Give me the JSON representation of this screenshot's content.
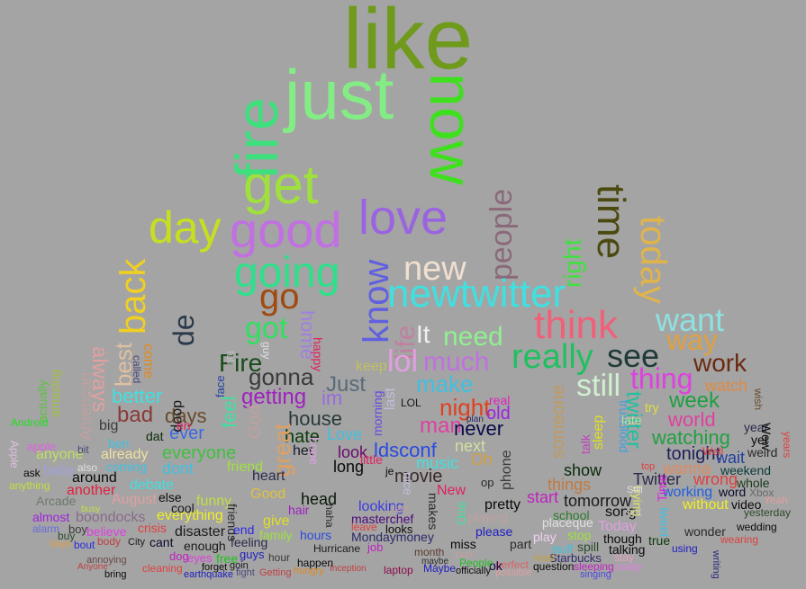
{
  "background": "#a4a4a4",
  "words": [
    {
      "text": "like",
      "color": "#6f9a1c"
    },
    {
      "text": "just",
      "color": "#84ec84"
    },
    {
      "text": "fire",
      "color": "#3ee07e"
    },
    {
      "text": "now",
      "color": "#3ee01e"
    },
    {
      "text": "get",
      "color": "#a0e03c"
    },
    {
      "text": "time",
      "color": "#4a4a10"
    },
    {
      "text": "today",
      "color": "#e0b44a"
    },
    {
      "text": "people",
      "color": "#8a6a7a"
    },
    {
      "text": "day",
      "color": "#c6e020"
    },
    {
      "text": "good",
      "color": "#c070e0"
    },
    {
      "text": "love",
      "color": "#9a64e0"
    },
    {
      "text": "know",
      "color": "#6060e0"
    },
    {
      "text": "right",
      "color": "#40e040"
    },
    {
      "text": "going",
      "color": "#2ee08a"
    },
    {
      "text": "new",
      "color": "#f0e0d0"
    },
    {
      "text": "newtwitter",
      "color": "#40e0e0"
    },
    {
      "text": "back",
      "color": "#f0d020"
    },
    {
      "text": "go",
      "color": "#a04a10"
    },
    {
      "text": "think",
      "color": "#f0607a"
    },
    {
      "text": "want",
      "color": "#90e0e0"
    },
    {
      "text": "way",
      "color": "#e0a040"
    },
    {
      "text": "work",
      "color": "#6a2a10"
    },
    {
      "text": "de",
      "color": "#2a3a4a"
    },
    {
      "text": "got",
      "color": "#30e060"
    },
    {
      "text": "home",
      "color": "#a080e0"
    },
    {
      "text": "life",
      "color": "#c080a0"
    },
    {
      "text": "It",
      "color": "#f0f0f0"
    },
    {
      "text": "need",
      "color": "#90f090"
    },
    {
      "text": "really",
      "color": "#20c060"
    },
    {
      "text": "see",
      "color": "#203a3a"
    },
    {
      "text": "much",
      "color": "#c070e0"
    },
    {
      "text": "lol",
      "color": "#e0a0e0"
    },
    {
      "text": "thing",
      "color": "#e040e0"
    },
    {
      "text": "still",
      "color": "#d0f0d0"
    },
    {
      "text": "Fire",
      "color": "#1a4a1a"
    },
    {
      "text": "gonna",
      "color": "#3a3a3a"
    },
    {
      "text": "best",
      "color": "#e0c0a0"
    },
    {
      "text": "always",
      "color": "#e0a0a0"
    },
    {
      "text": "better",
      "color": "#40e0e0"
    },
    {
      "text": "getting",
      "color": "#a020c0"
    },
    {
      "text": "im",
      "color": "#9a6ae0"
    },
    {
      "text": "Just",
      "color": "#5a6a7a"
    },
    {
      "text": "make",
      "color": "#40c0e0"
    },
    {
      "text": "night",
      "color": "#e04020"
    },
    {
      "text": "week",
      "color": "#20a040"
    },
    {
      "text": "watch",
      "color": "#e08a40"
    },
    {
      "text": "twitter",
      "color": "#20c0a0"
    },
    {
      "text": "world",
      "color": "#e040a0"
    },
    {
      "text": "bad",
      "color": "#8a3a3a"
    },
    {
      "text": "days",
      "color": "#6a4a2a"
    },
    {
      "text": "feel",
      "color": "#40e0a0"
    },
    {
      "text": "house",
      "color": "#2a3a3a"
    },
    {
      "text": "hate",
      "color": "#0a3a0a"
    },
    {
      "text": "man",
      "color": "#e040a0"
    },
    {
      "text": "old",
      "color": "#a020e0"
    },
    {
      "text": "never",
      "color": "#0a0a4a"
    },
    {
      "text": "watching",
      "color": "#20a040"
    },
    {
      "text": "great",
      "color": "#e0a060"
    },
    {
      "text": "God",
      "color": "#c0a0a0"
    },
    {
      "text": "Love",
      "color": "#40c0e0"
    },
    {
      "text": "tonight",
      "color": "#20205a"
    },
    {
      "text": "wait",
      "color": "#2040a0"
    },
    {
      "text": "everyone",
      "color": "#40c040"
    },
    {
      "text": "ever",
      "color": "#3a6ae0"
    },
    {
      "text": "long",
      "color": "#0a0a0a"
    },
    {
      "text": "look",
      "color": "#6a0a6a"
    },
    {
      "text": "next",
      "color": "#d0e0a0"
    },
    {
      "text": "ldsconf",
      "color": "#2a4ae0"
    },
    {
      "text": "music",
      "color": "#40e0e0"
    },
    {
      "text": "Oh",
      "color": "#d0a040"
    },
    {
      "text": "wanna",
      "color": "#e08a60"
    },
    {
      "text": "wrong",
      "color": "#e04040"
    },
    {
      "text": "weekend",
      "color": "#0a3a3a"
    },
    {
      "text": "friend",
      "color": "#a0e040"
    },
    {
      "text": "heart",
      "color": "#2a2a4a"
    },
    {
      "text": "dont",
      "color": "#40c0e0"
    },
    {
      "text": "around",
      "color": "#0a0a0a"
    },
    {
      "text": "head",
      "color": "#0a1a0a"
    },
    {
      "text": "movie",
      "color": "#3a2a2a"
    },
    {
      "text": "show",
      "color": "#0a2a0a"
    },
    {
      "text": "things",
      "color": "#c07a40"
    },
    {
      "text": "Twitter",
      "color": "#2a2a4a"
    },
    {
      "text": "pretty",
      "color": "#0a0a0a"
    },
    {
      "text": "start",
      "color": "#c020c0"
    },
    {
      "text": "tomorrow",
      "color": "#1a1a1a"
    },
    {
      "text": "working",
      "color": "#2060e0"
    },
    {
      "text": "Good",
      "color": "#e0c040"
    },
    {
      "text": "New",
      "color": "#e02060"
    },
    {
      "text": "everything",
      "color": "#f0f020"
    },
    {
      "text": "funny",
      "color": "#c0e040"
    },
    {
      "text": "another",
      "color": "#e02040"
    },
    {
      "text": "debate",
      "color": "#40e0e0"
    },
    {
      "text": "looking",
      "color": "#3a3ae0"
    },
    {
      "text": "masterchef",
      "color": "#4a0a7a"
    },
    {
      "text": "school",
      "color": "#2a7a2a"
    },
    {
      "text": "song",
      "color": "#0a0a0a"
    },
    {
      "text": "video",
      "color": "#0a0a0a"
    },
    {
      "text": "boondocks",
      "color": "#8a6a8a"
    },
    {
      "text": "disaster",
      "color": "#1a1a1a"
    },
    {
      "text": "feeling",
      "color": "#2a2a4a"
    },
    {
      "text": "hours",
      "color": "#2a4ae0"
    },
    {
      "text": "Hurricane",
      "color": "#1a1a1a"
    },
    {
      "text": "Mondaymoney",
      "color": "#2a2a6a"
    },
    {
      "text": "please",
      "color": "#2020c0"
    },
    {
      "text": "miss",
      "color": "#0a0a0a"
    },
    {
      "text": "month",
      "color": "#5a3a2a"
    },
    {
      "text": "enough",
      "color": "#1a1a1a"
    },
    {
      "text": "friends",
      "color": "#2a2a2a"
    },
    {
      "text": "Arcade",
      "color": "#6a7a6a"
    },
    {
      "text": "American",
      "color": "#c0a0a0"
    },
    {
      "text": "August",
      "color": "#e0a0a0"
    },
    {
      "text": "anyone",
      "color": "#c0e060"
    },
    {
      "text": "actually",
      "color": "#60c040"
    },
    {
      "text": "amazing",
      "color": "#a0c040"
    },
    {
      "text": "Android",
      "color": "#20e020"
    },
    {
      "text": "big",
      "color": "#3a3a3a"
    },
    {
      "text": "already",
      "color": "#f0e0a0"
    },
    {
      "text": "coming",
      "color": "#40c0e0"
    },
    {
      "text": "ask",
      "color": "#0a0a0a"
    },
    {
      "text": "anything",
      "color": "#c0e040"
    },
    {
      "text": "almost",
      "color": "#a020e0"
    },
    {
      "text": "cant",
      "color": "#0a0a2a"
    },
    {
      "text": "crisis",
      "color": "#e04040"
    },
    {
      "text": "believe",
      "color": "#e040e0"
    },
    {
      "text": "body",
      "color": "#c04040"
    },
    {
      "text": "cool",
      "color": "#1a1a1a"
    },
    {
      "text": "else",
      "color": "#0a0a0a"
    },
    {
      "text": "doop",
      "color": "#1a1a1a"
    },
    {
      "text": "dat",
      "color": "#0a2a0a"
    },
    {
      "text": "come",
      "color": "#e08a20"
    },
    {
      "text": "called",
      "color": "#4a4a7a"
    },
    {
      "text": "happy",
      "color": "#e02060"
    },
    {
      "text": "keep",
      "color": "#c0c060"
    },
    {
      "text": "last",
      "color": "#c0c0e0"
    },
    {
      "text": "LOL",
      "color": "#1a1a1a"
    },
    {
      "text": "real",
      "color": "#e020c0"
    },
    {
      "text": "morning",
      "color": "#6a4ae0"
    },
    {
      "text": "little",
      "color": "#e02060"
    },
    {
      "text": "hair",
      "color": "#a020c0"
    },
    {
      "text": "het",
      "color": "#1a1a2a"
    },
    {
      "text": "hope",
      "color": "#e0a0e0"
    },
    {
      "text": "phone",
      "color": "#3a3a3a"
    },
    {
      "text": "someone",
      "color": "#c09a60"
    },
    {
      "text": "sleep",
      "color": "#e0e020"
    },
    {
      "text": "talk",
      "color": "#c040c0"
    },
    {
      "text": "trueblood",
      "color": "#40a0e0"
    },
    {
      "text": "try",
      "color": "#e0e040"
    },
    {
      "text": "yet",
      "color": "#0a0a0a"
    },
    {
      "text": "year",
      "color": "#2a2a4a"
    },
    {
      "text": "wish",
      "color": "#6a4a2a"
    },
    {
      "text": "whole",
      "color": "#1a3a1a"
    },
    {
      "text": "Yeah",
      "color": "#e0a0a0"
    },
    {
      "text": "yesterday",
      "color": "#2a4a2a"
    },
    {
      "text": "without",
      "color": "#f0f020"
    },
    {
      "text": "word",
      "color": "#0a0a2a"
    },
    {
      "text": "Xbox",
      "color": "#6a6a6a"
    },
    {
      "text": "wonder",
      "color": "#2a2a2a"
    },
    {
      "text": "wedding",
      "color": "#0a0a0a"
    },
    {
      "text": "wearing",
      "color": "#e04040"
    },
    {
      "text": "Well",
      "color": "#e04040"
    },
    {
      "text": "weird",
      "color": "#2a2a2a"
    },
    {
      "text": "Wow",
      "color": "#0a0a0a"
    },
    {
      "text": "years",
      "color": "#e04040"
    },
    {
      "text": "trying",
      "color": "#e0e060"
    },
    {
      "text": "Time",
      "color": "#e020e0"
    },
    {
      "text": "tweet",
      "color": "#40c0e0"
    },
    {
      "text": "true",
      "color": "#0a3a0a"
    },
    {
      "text": "using",
      "color": "#2020c0"
    },
    {
      "text": "writing",
      "color": "#2a2a7a"
    },
    {
      "text": "stop",
      "color": "#a0e040"
    },
    {
      "text": "spill",
      "color": "#2a4a2a"
    },
    {
      "text": "talking",
      "color": "#0a0a0a"
    },
    {
      "text": "though",
      "color": "#0a0a0a"
    },
    {
      "text": "stuff",
      "color": "#40c0e0"
    },
    {
      "text": "sleeping",
      "color": "#c020c0"
    },
    {
      "text": "question",
      "color": "#0a0a0a"
    },
    {
      "text": "totally",
      "color": "#e080e0"
    },
    {
      "text": "singing",
      "color": "#4a4ae0"
    },
    {
      "text": "stay",
      "color": "#e0a0c0"
    },
    {
      "text": "Starbucks",
      "color": "#2a2a6a"
    },
    {
      "text": "read",
      "color": "#c0a040"
    },
    {
      "text": "part",
      "color": "#2a2a2a"
    },
    {
      "text": "play",
      "color": "#f0d0f0"
    },
    {
      "text": "placeque",
      "color": "#e0e0e0"
    },
    {
      "text": "perfect",
      "color": "#e06060"
    },
    {
      "text": "possible",
      "color": "#e0a0a0"
    },
    {
      "text": "ok",
      "color": "#0a0a4a"
    },
    {
      "text": "One",
      "color": "#40e0a0"
    },
    {
      "text": "officially",
      "color": "#0a0a0a"
    },
    {
      "text": "Maybe",
      "color": "#2020c0"
    },
    {
      "text": "maybe",
      "color": "#2a2a2a"
    },
    {
      "text": "pain",
      "color": "#c0a0a0"
    },
    {
      "text": "People",
      "color": "#20c020"
    },
    {
      "text": "makes",
      "color": "#2a2a2a"
    },
    {
      "text": "laptop",
      "color": "#8a0a4a"
    },
    {
      "text": "job",
      "color": "#c020c0"
    },
    {
      "text": "leave",
      "color": "#e04040"
    },
    {
      "text": "looks",
      "color": "#0a0a0a"
    },
    {
      "text": "happen",
      "color": "#0a0a0a"
    },
    {
      "text": "hour",
      "color": "#3a3a3a"
    },
    {
      "text": "hungry",
      "color": "#e08a20"
    },
    {
      "text": "Inception",
      "color": "#c04040"
    },
    {
      "text": "Getting",
      "color": "#c04040"
    },
    {
      "text": "guys",
      "color": "#2020c0"
    },
    {
      "text": "give",
      "color": "#e0e020"
    },
    {
      "text": "family",
      "color": "#a0e040"
    },
    {
      "text": "face",
      "color": "#2040a0"
    },
    {
      "text": "free",
      "color": "#20c020"
    },
    {
      "text": "fight",
      "color": "#4a4a7a"
    },
    {
      "text": "forget",
      "color": "#0a0a0a"
    },
    {
      "text": "goin",
      "color": "#1a1a1a"
    },
    {
      "text": "earthquake",
      "color": "#2020c0"
    },
    {
      "text": "eyes",
      "color": "#e040e0"
    },
    {
      "text": "end",
      "color": "#2a2ae0"
    },
    {
      "text": "dog",
      "color": "#c020c0"
    },
    {
      "text": "cleaning",
      "color": "#e04040"
    },
    {
      "text": "City",
      "color": "#1a1a1a"
    },
    {
      "text": "bring",
      "color": "#0a0a0a"
    },
    {
      "text": "buy",
      "color": "#2a4a2a"
    },
    {
      "text": "boy",
      "color": "#3a3a3a"
    },
    {
      "text": "bout",
      "color": "#2a2ae0"
    },
    {
      "text": "boys",
      "color": "#e0a040"
    },
    {
      "text": "alarm",
      "color": "#6a6ae0"
    },
    {
      "text": "annoying",
      "color": "#6a4a4a"
    },
    {
      "text": "Anyone",
      "color": "#c04040"
    },
    {
      "text": "busy",
      "color": "#c0e040"
    },
    {
      "text": "apple",
      "color": "#e060e0"
    },
    {
      "text": "Apple",
      "color": "#e0c0e0"
    },
    {
      "text": "baby",
      "color": "#a0a0e0"
    },
    {
      "text": "also",
      "color": "#e0e0e0"
    },
    {
      "text": "bit",
      "color": "#4a4a7a"
    },
    {
      "text": "ben",
      "color": "#40c0e0"
    },
    {
      "text": "Still",
      "color": "#e0e0e0"
    },
    {
      "text": "top",
      "color": "#e04040"
    },
    {
      "text": "set",
      "color": "#c0c0c0"
    },
    {
      "text": "Today",
      "color": "#e0a0e0"
    },
    {
      "text": "playing",
      "color": "#c0a0a0"
    },
    {
      "text": "op",
      "color": "#2a2a2a"
    },
    {
      "text": "plan",
      "color": "#2a2a6a"
    },
    {
      "text": "en",
      "color": "#e02060"
    },
    {
      "text": "je",
      "color": "#0a0a0a"
    },
    {
      "text": "nice",
      "color": "#c0c0e0"
    },
    {
      "text": "haha",
      "color": "#2a2a2a"
    },
    {
      "text": "lets",
      "color": "#c0a0a0"
    },
    {
      "text": "guy",
      "color": "#e0e0e0"
    },
    {
      "text": "full",
      "color": "#c0c0c0"
    },
    {
      "text": "late",
      "color": "#c0e0a0"
    }
  ]
}
